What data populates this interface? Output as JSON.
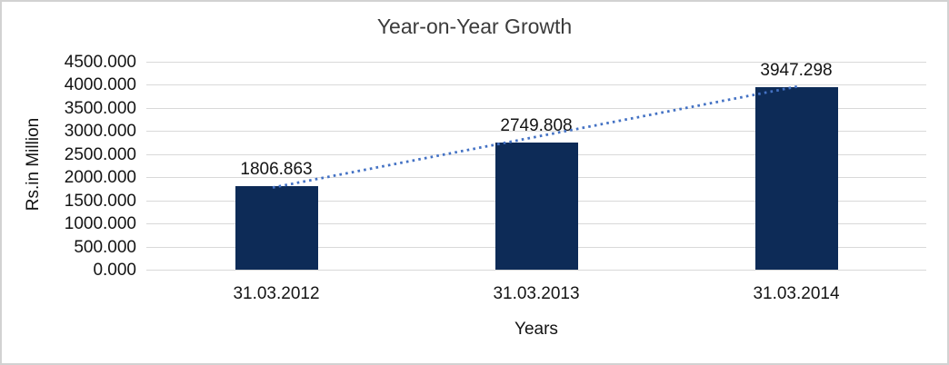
{
  "chart_data": {
    "type": "bar",
    "title": "Year-on-Year Growth",
    "xlabel": "Years",
    "ylabel": "Rs.in Million",
    "categories": [
      "31.03.2012",
      "31.03.2013",
      "31.03.2014"
    ],
    "values": [
      1806.863,
      2749.808,
      3947.298
    ],
    "value_labels": [
      "1806.863",
      "2749.808",
      "3947.298"
    ],
    "ylim": [
      0,
      4500
    ],
    "ytick_step": 500,
    "ytick_labels": [
      "0.000",
      "500.000",
      "1000.000",
      "1500.000",
      "2000.000",
      "2500.000",
      "3000.000",
      "3500.000",
      "4000.000",
      "4500.000"
    ],
    "grid": true,
    "legend_position": "none",
    "trendline": {
      "type": "linear",
      "style": "dotted",
      "connects": "first-bar-top to last-bar-top"
    },
    "colors": {
      "bar": "#0d2b57",
      "trendline": "#4472c4",
      "gridline": "#d9d9d9",
      "text": "#141414",
      "title_text": "#3b3b3b",
      "frame_border": "#d2d2d2",
      "background": "#ffffff"
    }
  }
}
